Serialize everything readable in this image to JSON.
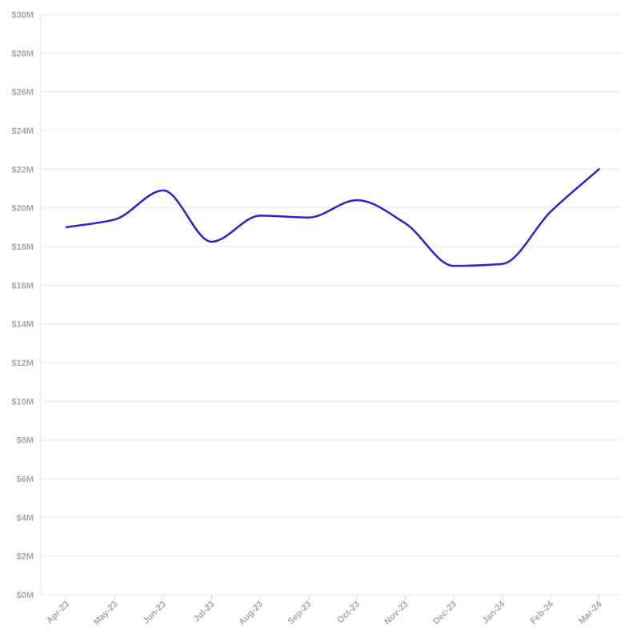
{
  "chart_data": {
    "type": "line",
    "categories": [
      "Apr-23",
      "May-23",
      "Jun-23",
      "Jul-23",
      "Aug-23",
      "Sep-23",
      "Oct-23",
      "Nov-23",
      "Dec-23",
      "Jan-24",
      "Feb-24",
      "Mar-24"
    ],
    "series": [
      {
        "values": [
          19.0,
          19.4,
          20.9,
          18.25,
          19.6,
          19.5,
          20.4,
          19.2,
          17.0,
          17.1,
          19.8,
          22.0
        ]
      }
    ],
    "y_ticks": [
      "$0M",
      "$2M",
      "$4M",
      "$6M",
      "$8M",
      "$10M",
      "$12M",
      "$14M",
      "$16M",
      "$18M",
      "$20M",
      "$22M",
      "$24M",
      "$26M",
      "$28M",
      "$30M"
    ],
    "ylim": [
      0,
      30
    ],
    "grid": true,
    "colors": {
      "line": "#2e22c8",
      "grid": "#e8e8e8",
      "tick": "#a8a8a8"
    }
  }
}
